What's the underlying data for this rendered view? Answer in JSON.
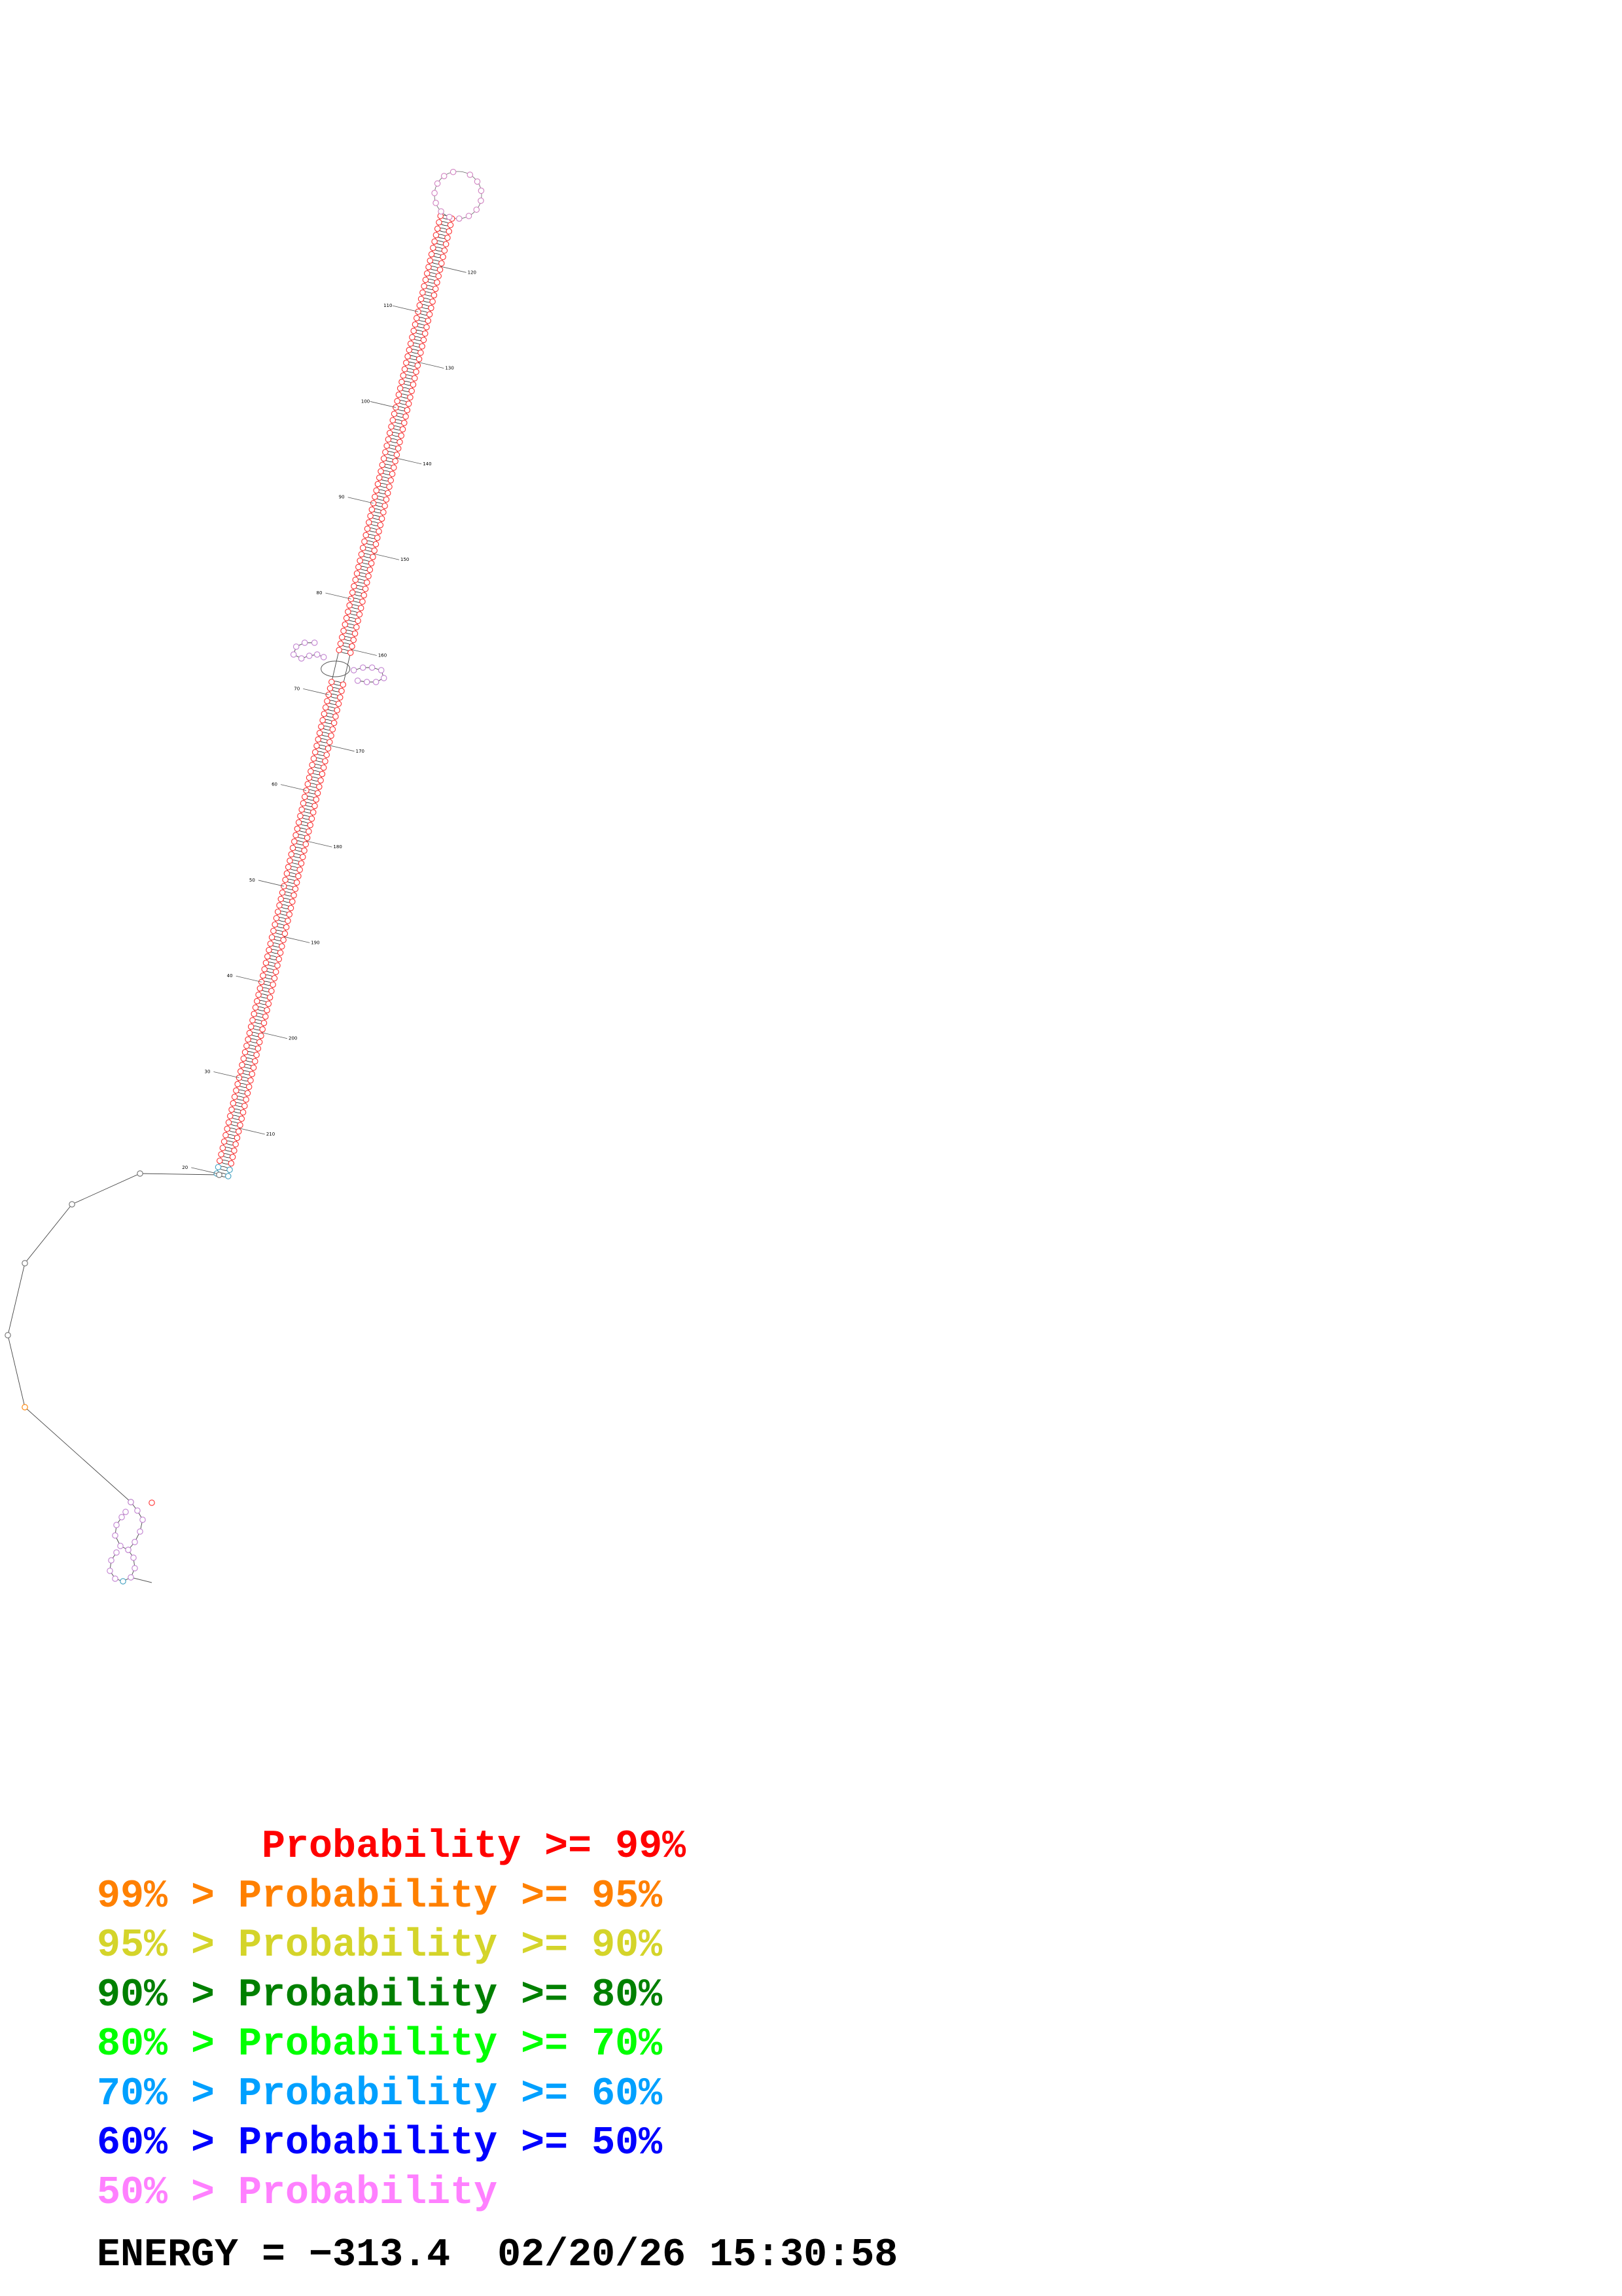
{
  "structure": {
    "tick_labels": [
      "1",
      "10",
      "20",
      "30",
      "40",
      "50",
      "60",
      "70",
      "80",
      "90",
      "100",
      "110",
      "120",
      "130",
      "140",
      "150",
      "160",
      "170",
      "180",
      "190",
      "200",
      "210",
      "220",
      "230",
      "240",
      "250",
      "260",
      "270",
      "280",
      "290",
      "300",
      "310",
      "320",
      "330"
    ]
  },
  "legend": {
    "lines": [
      {
        "prefix": "       ",
        "text": "Probability >= 99%",
        "color": "#ff0000"
      },
      {
        "prefix": "99% > ",
        "text": "Probability >= 95%",
        "color": "#ff8000"
      },
      {
        "prefix": "95% > ",
        "text": "Probability >= 90%",
        "color": "#d4d42a"
      },
      {
        "prefix": "90% > ",
        "text": "Probability >= 80%",
        "color": "#008000"
      },
      {
        "prefix": "80% > ",
        "text": "Probability >= 70%",
        "color": "#00ff00"
      },
      {
        "prefix": "70% > ",
        "text": "Probability >= 60%",
        "color": "#00a0ff"
      },
      {
        "prefix": "60% > ",
        "text": "Probability >= 50%",
        "color": "#0000ff"
      },
      {
        "prefix": "50% > ",
        "text": "Probability",
        "color": "#ff80ff"
      }
    ]
  },
  "footer": {
    "energy": "ENERGY = −313.4  02/20/26 15:30:58"
  }
}
